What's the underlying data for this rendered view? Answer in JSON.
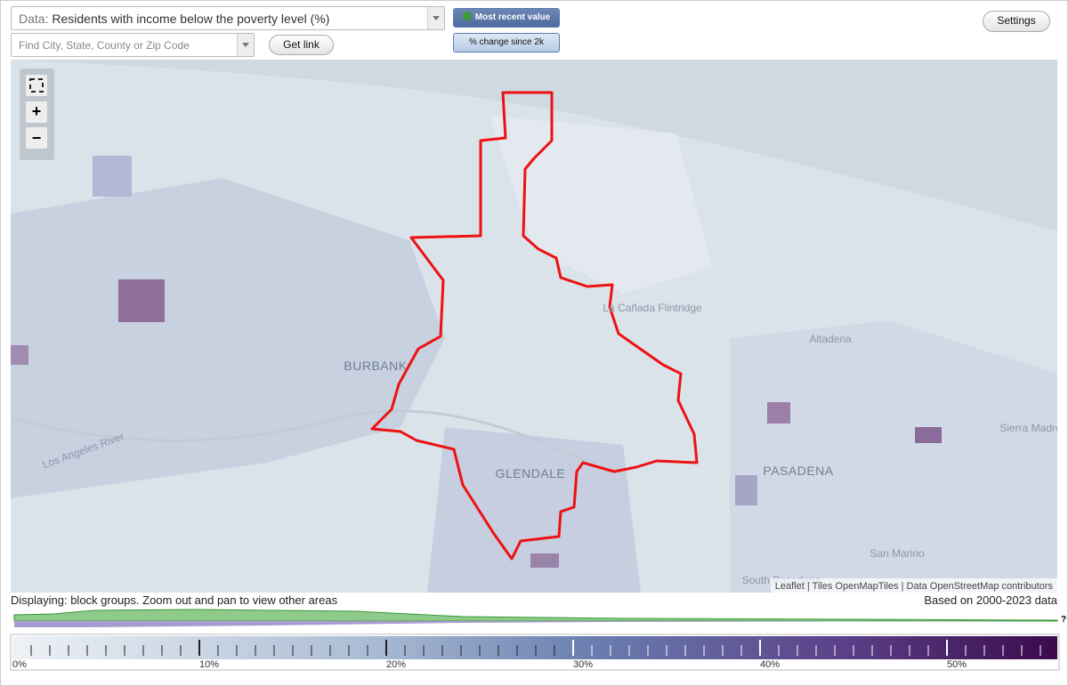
{
  "controls": {
    "data_label": "Data:",
    "data_select": "Residents with income below the poverty level (%)",
    "search_placeholder": "Find City, State, County or Zip Code",
    "get_link": "Get link",
    "most_recent": "Most recent value",
    "pct_change": "% change since 2k",
    "settings": "Settings"
  },
  "map": {
    "zoom_in": "+",
    "zoom_out": "−",
    "labels": [
      "BURBANK",
      "GLENDALE",
      "PASADENA",
      "La Cañada Flintridge",
      "Altadena",
      "Sierra Madre",
      "San Marino",
      "South Pasadena",
      "Los Angeles River"
    ],
    "attribution": "Leaflet | Tiles OpenMapTiles | Data OpenStreetMap contributors"
  },
  "footer": {
    "displaying": "Displaying: block groups. Zoom out and pan to view other areas",
    "based_on": "Based on 2000-2023 data"
  },
  "legend": {
    "labels": [
      "0%",
      "10%",
      "20%",
      "30%",
      "40%",
      "50%"
    ],
    "help": "?"
  }
}
